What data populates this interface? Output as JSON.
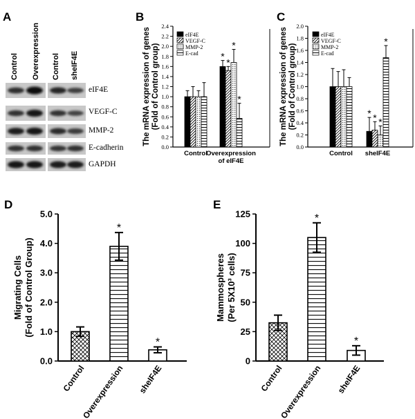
{
  "panel_labels": [
    "A",
    "B",
    "C",
    "D",
    "E"
  ],
  "blot": {
    "left_lanes": [
      "Control",
      "Overexpression"
    ],
    "right_lanes": [
      "Control",
      "sheIF4E"
    ],
    "proteins": [
      "eIF4E",
      "VEGF-C",
      "MMP-2",
      "E-cadherin",
      "GAPDH"
    ]
  },
  "legend_items": [
    "eIF4E",
    "VEGF-C",
    "MMP-2",
    "E-cad"
  ],
  "chart_data": [
    {
      "panel": "B",
      "type": "bar",
      "ylabel": "The mRNA expression of genes (Fold of Control group)",
      "ylabel_lines": [
        "The mRNA expression of genes",
        "(Fold of Control group)"
      ],
      "ylim": [
        0,
        2.4
      ],
      "yticks": [
        "0.0",
        "0.2",
        "0.4",
        "0.6",
        "0.8",
        "1.0",
        "1.2",
        "1.4",
        "1.6",
        "1.8",
        "2.0",
        "2.2",
        "2.4"
      ],
      "group_labels": [
        [
          "Control"
        ],
        [
          "Overexpression",
          "of eIF4E"
        ]
      ],
      "categories": [
        "Control",
        "Overexpression of eIF4E"
      ],
      "series": [
        {
          "name": "eIF4E",
          "values": [
            1.0,
            1.6
          ],
          "errors": [
            0.12,
            0.12
          ],
          "sig": [
            "",
            "*"
          ]
        },
        {
          "name": "VEGF-C",
          "values": [
            1.0,
            1.52
          ],
          "errors": [
            0.2,
            0.08
          ],
          "sig": [
            "",
            "*"
          ]
        },
        {
          "name": "MMP-2",
          "values": [
            1.0,
            1.68
          ],
          "errors": [
            0.12,
            0.26
          ],
          "sig": [
            "",
            "*"
          ]
        },
        {
          "name": "E-cad",
          "values": [
            1.0,
            0.57
          ],
          "errors": [
            0.28,
            0.3
          ],
          "sig": [
            "",
            "*"
          ]
        }
      ]
    },
    {
      "panel": "C",
      "type": "bar",
      "ylabel": "The mRNA expression of genes (Fold of Control group)",
      "ylabel_lines": [
        "The mRNA expression of genes",
        "(Fold of Control group)"
      ],
      "ylim": [
        0,
        2.0
      ],
      "yticks": [
        "0.0",
        "0.2",
        "0.4",
        "0.6",
        "0.8",
        "1.0",
        "1.2",
        "1.4",
        "1.6",
        "1.8",
        "2.0"
      ],
      "group_labels": [
        [
          "Control"
        ],
        [
          "sheIF4E"
        ]
      ],
      "categories": [
        "Control",
        "sheIF4E"
      ],
      "series": [
        {
          "name": "eIF4E",
          "values": [
            1.0,
            0.26
          ],
          "errors": [
            0.3,
            0.23
          ],
          "sig": [
            "",
            "*"
          ]
        },
        {
          "name": "VEGF-C",
          "values": [
            1.0,
            0.28
          ],
          "errors": [
            0.25,
            0.14
          ],
          "sig": [
            "",
            "*"
          ]
        },
        {
          "name": "MMP-2",
          "values": [
            1.0,
            0.2
          ],
          "errors": [
            0.28,
            0.15
          ],
          "sig": [
            "",
            "*"
          ]
        },
        {
          "name": "E-cad",
          "values": [
            1.0,
            1.48
          ],
          "errors": [
            0.15,
            0.2
          ],
          "sig": [
            "",
            "*"
          ]
        }
      ]
    },
    {
      "panel": "D",
      "type": "bar",
      "ylabel": "Migrating Cells (Fold of Control Group)",
      "ylabel_lines": [
        "Migrating Cells",
        "(Fold of Control Group)"
      ],
      "ylim": [
        0,
        5.0
      ],
      "yticks": [
        "0.0",
        "1.0",
        "2.0",
        "3.0",
        "4.0",
        "5.0"
      ],
      "categories": [
        "Control",
        "Overexpression",
        "sheIF4E"
      ],
      "values": [
        1.0,
        3.9,
        0.38
      ],
      "errors": [
        0.16,
        0.47,
        0.1
      ],
      "sig": [
        "",
        "*",
        "*"
      ],
      "patterns": [
        "crosshatch",
        "hlines",
        "plain"
      ]
    },
    {
      "panel": "E",
      "type": "bar",
      "ylabel": "Mammospheres (Per 5X10³ cells)",
      "ylabel_lines": [
        "Mammospheres",
        "(Per 5X10³ cells)"
      ],
      "ylim": [
        0,
        125
      ],
      "yticks": [
        "0",
        "25",
        "50",
        "75",
        "100",
        "125"
      ],
      "categories": [
        "Control",
        "Overexpression",
        "sheIF4E"
      ],
      "values": [
        32.5,
        105,
        9
      ],
      "errors": [
        6.5,
        12.5,
        4
      ],
      "sig": [
        "",
        "*",
        "*"
      ],
      "patterns": [
        "crosshatch",
        "hlines",
        "plain"
      ]
    }
  ]
}
